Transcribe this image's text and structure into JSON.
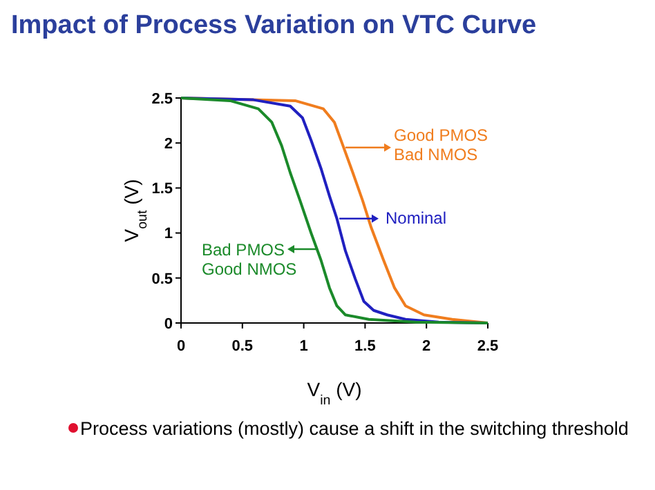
{
  "chart_data": {
    "type": "line",
    "title": "Impact of Process Variation on VTC Curve",
    "xlabel": "V$_{in}$ (V)",
    "ylabel": "V$_{out}$ (V)",
    "xlim": [
      0,
      2.5
    ],
    "ylim": [
      0,
      2.5
    ],
    "xticks": [
      0,
      0.5,
      1,
      1.5,
      2,
      2.5
    ],
    "yticks": [
      0,
      0.5,
      1,
      1.5,
      2,
      2.5
    ],
    "grid": false,
    "marker": "none",
    "line_style": "solid",
    "series": [
      {
        "color": "#f07d1e",
        "x": [
          0,
          0.93,
          1.16,
          1.25,
          1.32,
          1.4,
          1.48,
          1.55,
          1.65,
          1.74,
          1.83,
          1.98,
          2.21,
          2.5
        ],
        "values": [
          2.5,
          2.47,
          2.38,
          2.23,
          1.97,
          1.67,
          1.36,
          1.06,
          0.7,
          0.39,
          0.19,
          0.09,
          0.04,
          0
        ]
      },
      {
        "color": "#2020c0",
        "x": [
          0,
          0.59,
          0.89,
          0.99,
          1.06,
          1.14,
          1.21,
          1.27,
          1.34,
          1.42,
          1.49,
          1.57,
          1.68,
          1.83,
          2.1,
          2.5
        ],
        "values": [
          2.5,
          2.48,
          2.41,
          2.28,
          2.03,
          1.72,
          1.41,
          1.16,
          0.8,
          0.49,
          0.24,
          0.14,
          0.09,
          0.04,
          0.01,
          0
        ]
      },
      {
        "color": "#1b8a2a",
        "x": [
          0,
          0.4,
          0.63,
          0.74,
          0.82,
          0.89,
          0.97,
          1.06,
          1.14,
          1.21,
          1.27,
          1.34,
          1.53,
          1.91,
          2.5
        ],
        "values": [
          2.5,
          2.47,
          2.38,
          2.23,
          1.97,
          1.67,
          1.36,
          1.0,
          0.7,
          0.39,
          0.19,
          0.09,
          0.04,
          0.01,
          0
        ]
      }
    ],
    "annotations": [
      {
        "text": "Good PMOS\nBad NMOS",
        "x": 1.34,
        "y": 1.95
      },
      {
        "text": "Nominal",
        "x": 1.29,
        "y": 1.16
      },
      {
        "text": "Bad PMOS\nGood NMOS",
        "x": 1.1,
        "y": 0.82
      },
      "Process variations (mostly) cause a shift in the switching threshold"
    ]
  }
}
